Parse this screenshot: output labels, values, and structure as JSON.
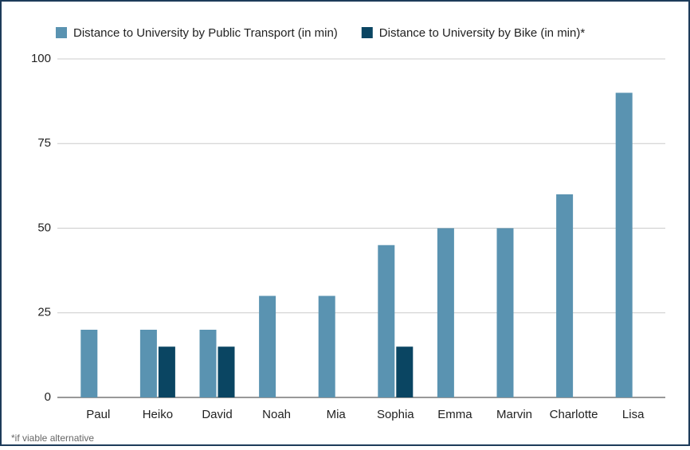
{
  "chart_data": {
    "type": "bar",
    "categories": [
      "Paul",
      "Heiko",
      "David",
      "Noah",
      "Mia",
      "Sophia",
      "Emma",
      "Marvin",
      "Charlotte",
      "Lisa"
    ],
    "series": [
      {
        "name": "Distance to University by Public Transport (in min)",
        "color": "#5a93b1",
        "values": [
          20,
          20,
          20,
          30,
          30,
          45,
          50,
          50,
          60,
          90
        ]
      },
      {
        "name": "Distance to University by Bike (in min)*",
        "color": "#0a4562",
        "values": [
          null,
          15,
          15,
          null,
          null,
          15,
          null,
          null,
          null,
          null
        ]
      }
    ],
    "ylim": [
      0,
      100
    ],
    "yticks": [
      0,
      25,
      50,
      75,
      100
    ],
    "grid": true,
    "legend": "top",
    "annotations": [
      "*if viable alternative"
    ]
  }
}
